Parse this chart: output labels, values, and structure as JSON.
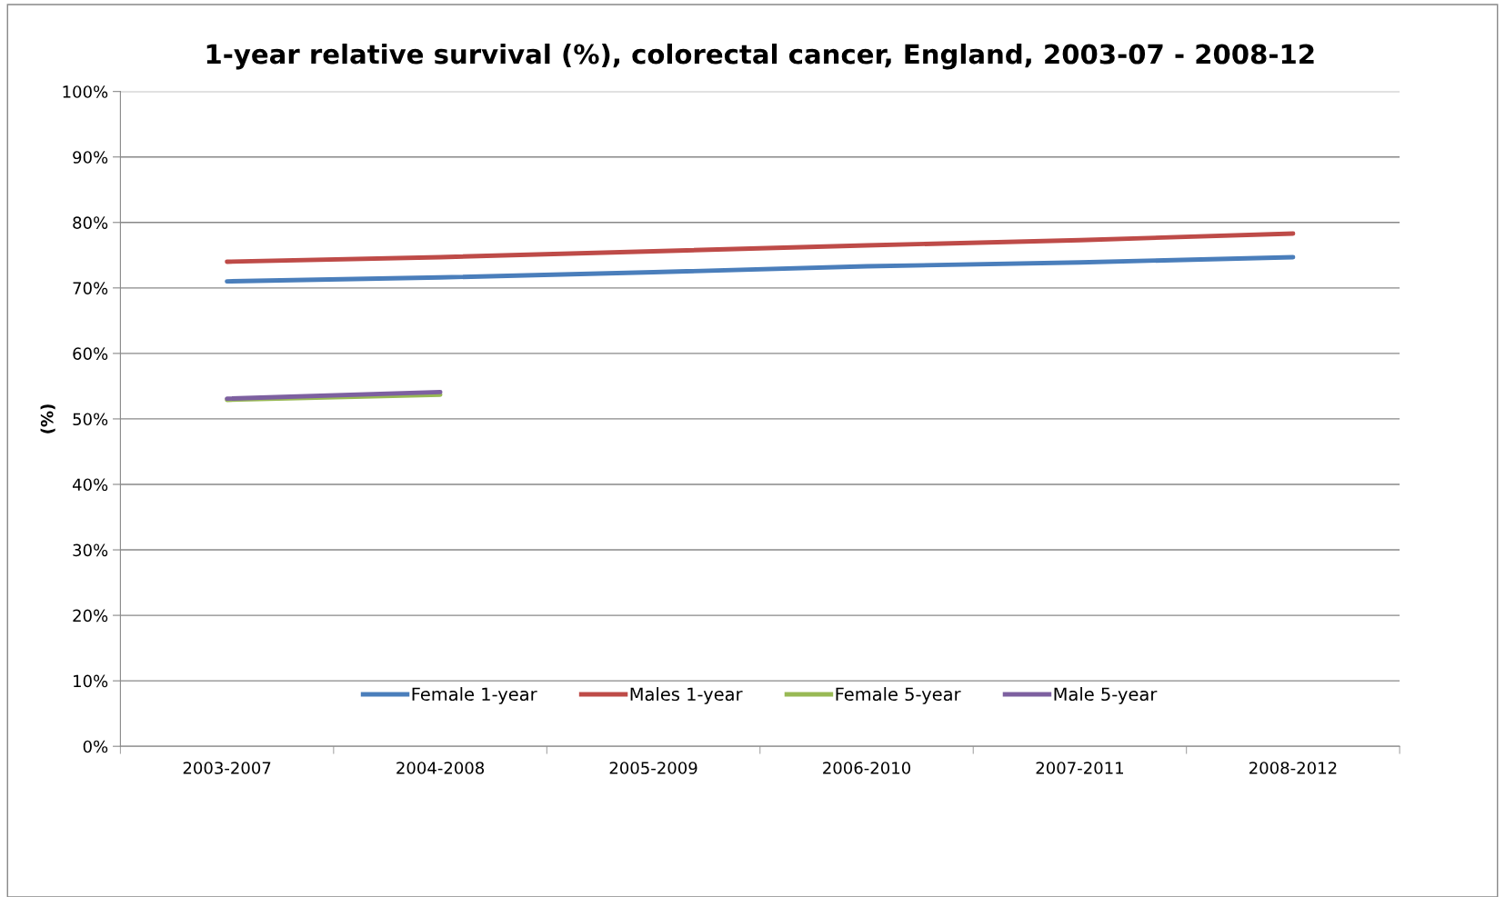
{
  "chart_data": {
    "type": "line",
    "title": "1-year relative survival (%), colorectal cancer, England, 2003-07 - 2008-12",
    "ylabel": "(%)",
    "categories": [
      "2003-2007",
      "2004-2008",
      "2005-2009",
      "2006-2010",
      "2007-2011",
      "2008-2012"
    ],
    "series": [
      {
        "name": "Female 1-year",
        "color": "#4a7ebb",
        "values": [
          71.0,
          71.6,
          72.4,
          73.3,
          73.9,
          74.7
        ]
      },
      {
        "name": "Males 1-year",
        "color": "#be4b48",
        "values": [
          74.0,
          74.7,
          75.6,
          76.5,
          77.3,
          78.3
        ]
      },
      {
        "name": "Female 5-year",
        "color": "#98b954",
        "values": [
          52.9,
          53.7,
          null,
          null,
          null,
          null
        ]
      },
      {
        "name": "Male 5-year",
        "color": "#7d60a0",
        "values": [
          53.1,
          54.1,
          null,
          null,
          null,
          null
        ]
      }
    ],
    "ylim": [
      0,
      100
    ],
    "yticks": [
      {
        "value": 0,
        "label": "0%"
      },
      {
        "value": 10,
        "label": "10%"
      },
      {
        "value": 20,
        "label": "20%"
      },
      {
        "value": 30,
        "label": "30%"
      },
      {
        "value": 40,
        "label": "40%"
      },
      {
        "value": 50,
        "label": "50%"
      },
      {
        "value": 60,
        "label": "60%"
      },
      {
        "value": 70,
        "label": "70%"
      },
      {
        "value": 80,
        "label": "80%"
      },
      {
        "value": 90,
        "label": "90%"
      },
      {
        "value": 100,
        "label": "100%"
      }
    ],
    "grid": "y",
    "legend": "bottom",
    "marker": "none",
    "line_style": "solid"
  }
}
